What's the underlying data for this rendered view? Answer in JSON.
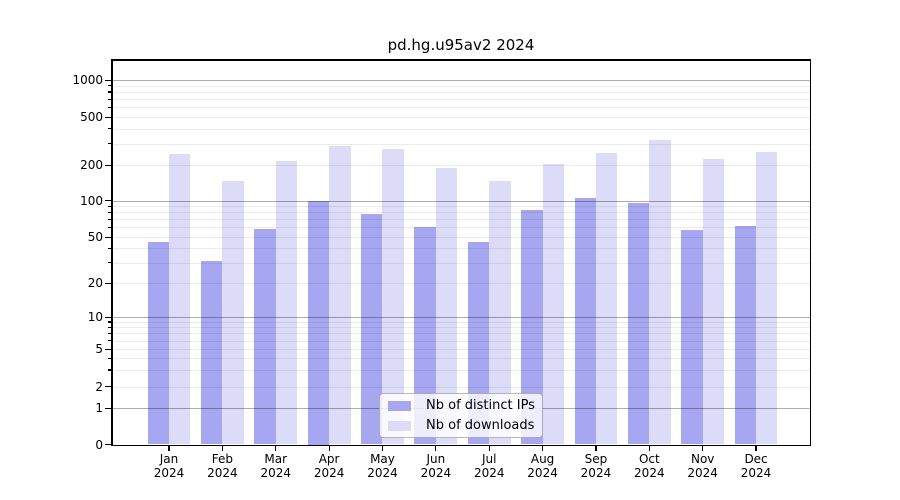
{
  "title": "pd.hg.u95av2 2024",
  "chart_data": {
    "type": "bar",
    "title": "pd.hg.u95av2 2024",
    "xlabel": "",
    "ylabel": "",
    "year": "2024",
    "categories": [
      "Jan",
      "Feb",
      "Mar",
      "Apr",
      "May",
      "Jun",
      "Jul",
      "Aug",
      "Sep",
      "Oct",
      "Nov",
      "Dec"
    ],
    "series": [
      {
        "name": "Nb of distinct IPs",
        "color": "#a6a6f1",
        "values": [
          45,
          31,
          58,
          100,
          78,
          61,
          45,
          84,
          104,
          96,
          57,
          62
        ]
      },
      {
        "name": "Nb of downloads",
        "color": "#dcdcf9",
        "values": [
          245,
          145,
          215,
          290,
          270,
          188,
          145,
          205,
          250,
          325,
          225,
          255
        ]
      }
    ],
    "y_axis": {
      "scale": "symlog",
      "tick_values": [
        0,
        1,
        2,
        5,
        10,
        20,
        50,
        100,
        200,
        500,
        1000
      ],
      "ylim": [
        0,
        1450
      ],
      "grid": "minor and major log gridlines drawn over bars"
    },
    "legend_position": "bottom-center"
  },
  "colors": {
    "distinct_ips_bar": "#a6a6f1",
    "downloads_bar": "#dcdcf9",
    "major_grid": "#b0b0b0",
    "minor_grid": "#ececec",
    "axis": "#000000",
    "background": "#ffffff"
  }
}
